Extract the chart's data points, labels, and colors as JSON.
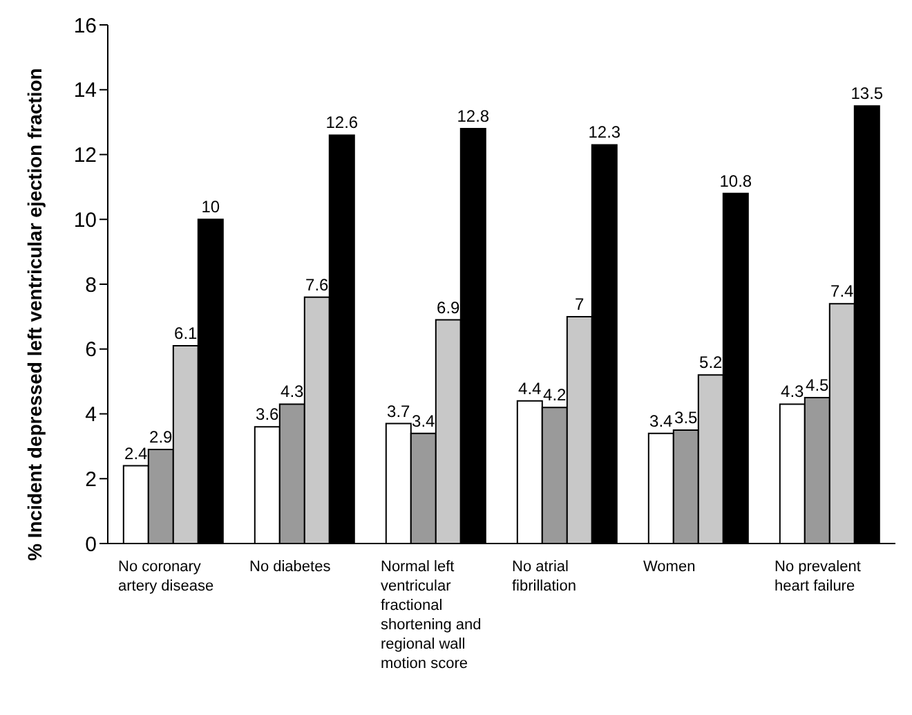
{
  "chart_data": {
    "type": "bar",
    "ylabel": "% Incident depressed left ventricular ejection fraction",
    "categories": [
      "No coronary artery disease",
      "No diabetes",
      "Normal left ventricular fractional shortening and regional wall motion score",
      "No atrial fibrillation",
      "Women",
      "No prevalent heart failure"
    ],
    "series": [
      {
        "color": "#ffffff",
        "values": [
          2.4,
          3.6,
          3.7,
          4.4,
          3.4,
          4.3
        ]
      },
      {
        "color": "#9a9a9a",
        "values": [
          2.9,
          4.3,
          3.4,
          4.2,
          3.5,
          4.5
        ]
      },
      {
        "color": "#c8c8c8",
        "values": [
          6.1,
          7.6,
          6.9,
          7,
          5.2,
          7.4
        ]
      },
      {
        "color": "#000000",
        "values": [
          10,
          12.6,
          12.8,
          12.3,
          10.8,
          13.5
        ]
      }
    ],
    "ylim": [
      0,
      16
    ],
    "yticks": [
      0,
      2,
      4,
      6,
      8,
      10,
      12,
      14,
      16
    ],
    "grid": false,
    "legend": false,
    "data_labels": true
  }
}
